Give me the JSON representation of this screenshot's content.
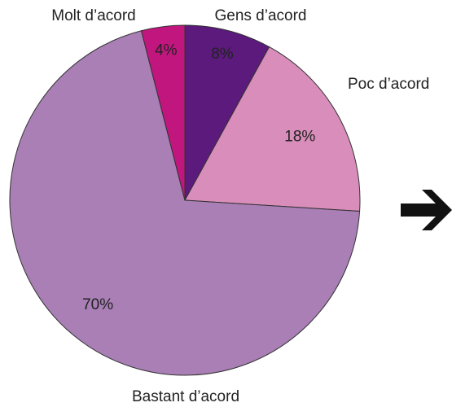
{
  "chart_data": {
    "type": "pie",
    "categories": [
      "Gens d’acord",
      "Poc d’acord",
      "Bastant d’acord",
      "Molt d’acord"
    ],
    "values": [
      8,
      18,
      70,
      4
    ],
    "value_labels": [
      "8%",
      "18%",
      "70%",
      "4%"
    ],
    "colors": [
      "#5b1a7c",
      "#d98dba",
      "#a97fb6",
      "#c2167f"
    ]
  }
}
